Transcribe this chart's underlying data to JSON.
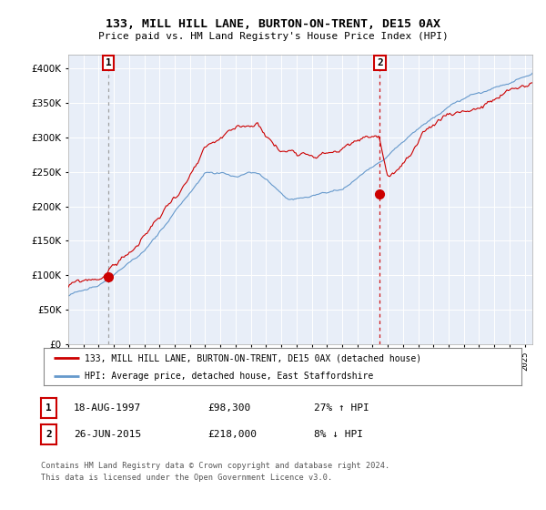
{
  "title": "133, MILL HILL LANE, BURTON-ON-TRENT, DE15 0AX",
  "subtitle": "Price paid vs. HM Land Registry's House Price Index (HPI)",
  "legend_label_red": "133, MILL HILL LANE, BURTON-ON-TRENT, DE15 0AX (detached house)",
  "legend_label_blue": "HPI: Average price, detached house, East Staffordshire",
  "annotation1_date": "18-AUG-1997",
  "annotation1_price": "£98,300",
  "annotation1_hpi": "27% ↑ HPI",
  "annotation2_date": "26-JUN-2015",
  "annotation2_price": "£218,000",
  "annotation2_hpi": "8% ↓ HPI",
  "footer": "Contains HM Land Registry data © Crown copyright and database right 2024.\nThis data is licensed under the Open Government Licence v3.0.",
  "red_color": "#cc0000",
  "blue_color": "#6699cc",
  "bg_color": "#e8eef8",
  "yticks": [
    0,
    50000,
    100000,
    150000,
    200000,
    250000,
    300000,
    350000,
    400000
  ],
  "sale1_year": 1997.63,
  "sale1_price": 98300,
  "sale2_year": 2015.48,
  "sale2_price": 218000,
  "xmin": 1995,
  "xmax": 2025.5
}
